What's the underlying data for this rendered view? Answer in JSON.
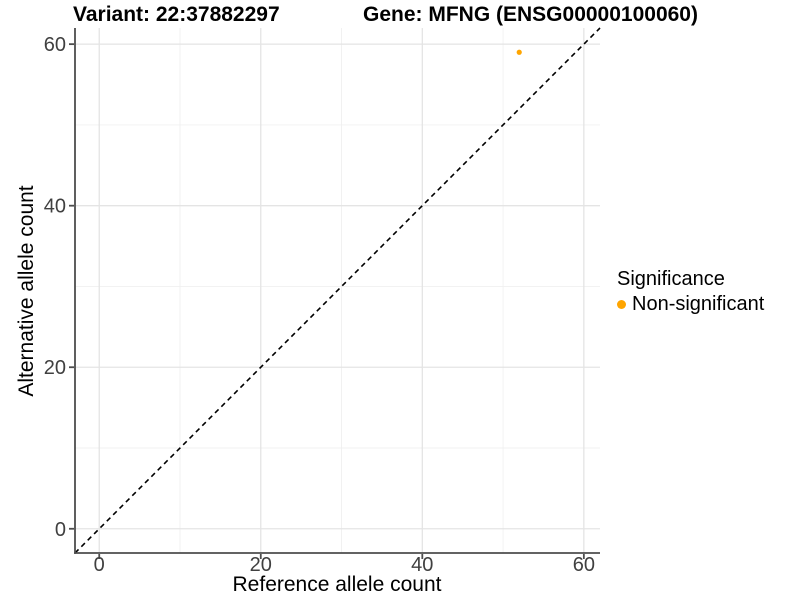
{
  "chart_data": {
    "type": "scatter",
    "titles": {
      "variant": "Variant: 22:37882297",
      "gene": "Gene: MFNG (ENSG00000100060)"
    },
    "xlabel": "Reference allele count",
    "ylabel": "Alternative allele count",
    "xlim": [
      -3,
      62
    ],
    "ylim": [
      -3,
      62
    ],
    "xticks": [
      0,
      20,
      40,
      60
    ],
    "yticks": [
      0,
      20,
      40,
      60
    ],
    "minor_xticks": [
      10,
      30,
      50
    ],
    "minor_yticks": [
      10,
      30,
      50
    ],
    "grid": "major+minor on white background",
    "identity_line": {
      "style": "dashed",
      "color": "#000000",
      "from": -3,
      "to": 62
    },
    "points": [
      {
        "x": 52,
        "y": 59,
        "series": "Non-significant"
      }
    ],
    "series": [
      {
        "name": "Non-significant",
        "color": "#FFA500"
      }
    ],
    "legend": {
      "title": "Significance",
      "position": "right",
      "items": [
        {
          "label": "Non-significant",
          "color": "#FFA500"
        }
      ]
    }
  },
  "colors": {
    "background": "#ffffff",
    "axis": "#4d4d4d",
    "tick_label": "#404040",
    "grid_major": "#e4e4e4",
    "grid_minor": "#f0f0f0",
    "point": "#FFA500"
  }
}
